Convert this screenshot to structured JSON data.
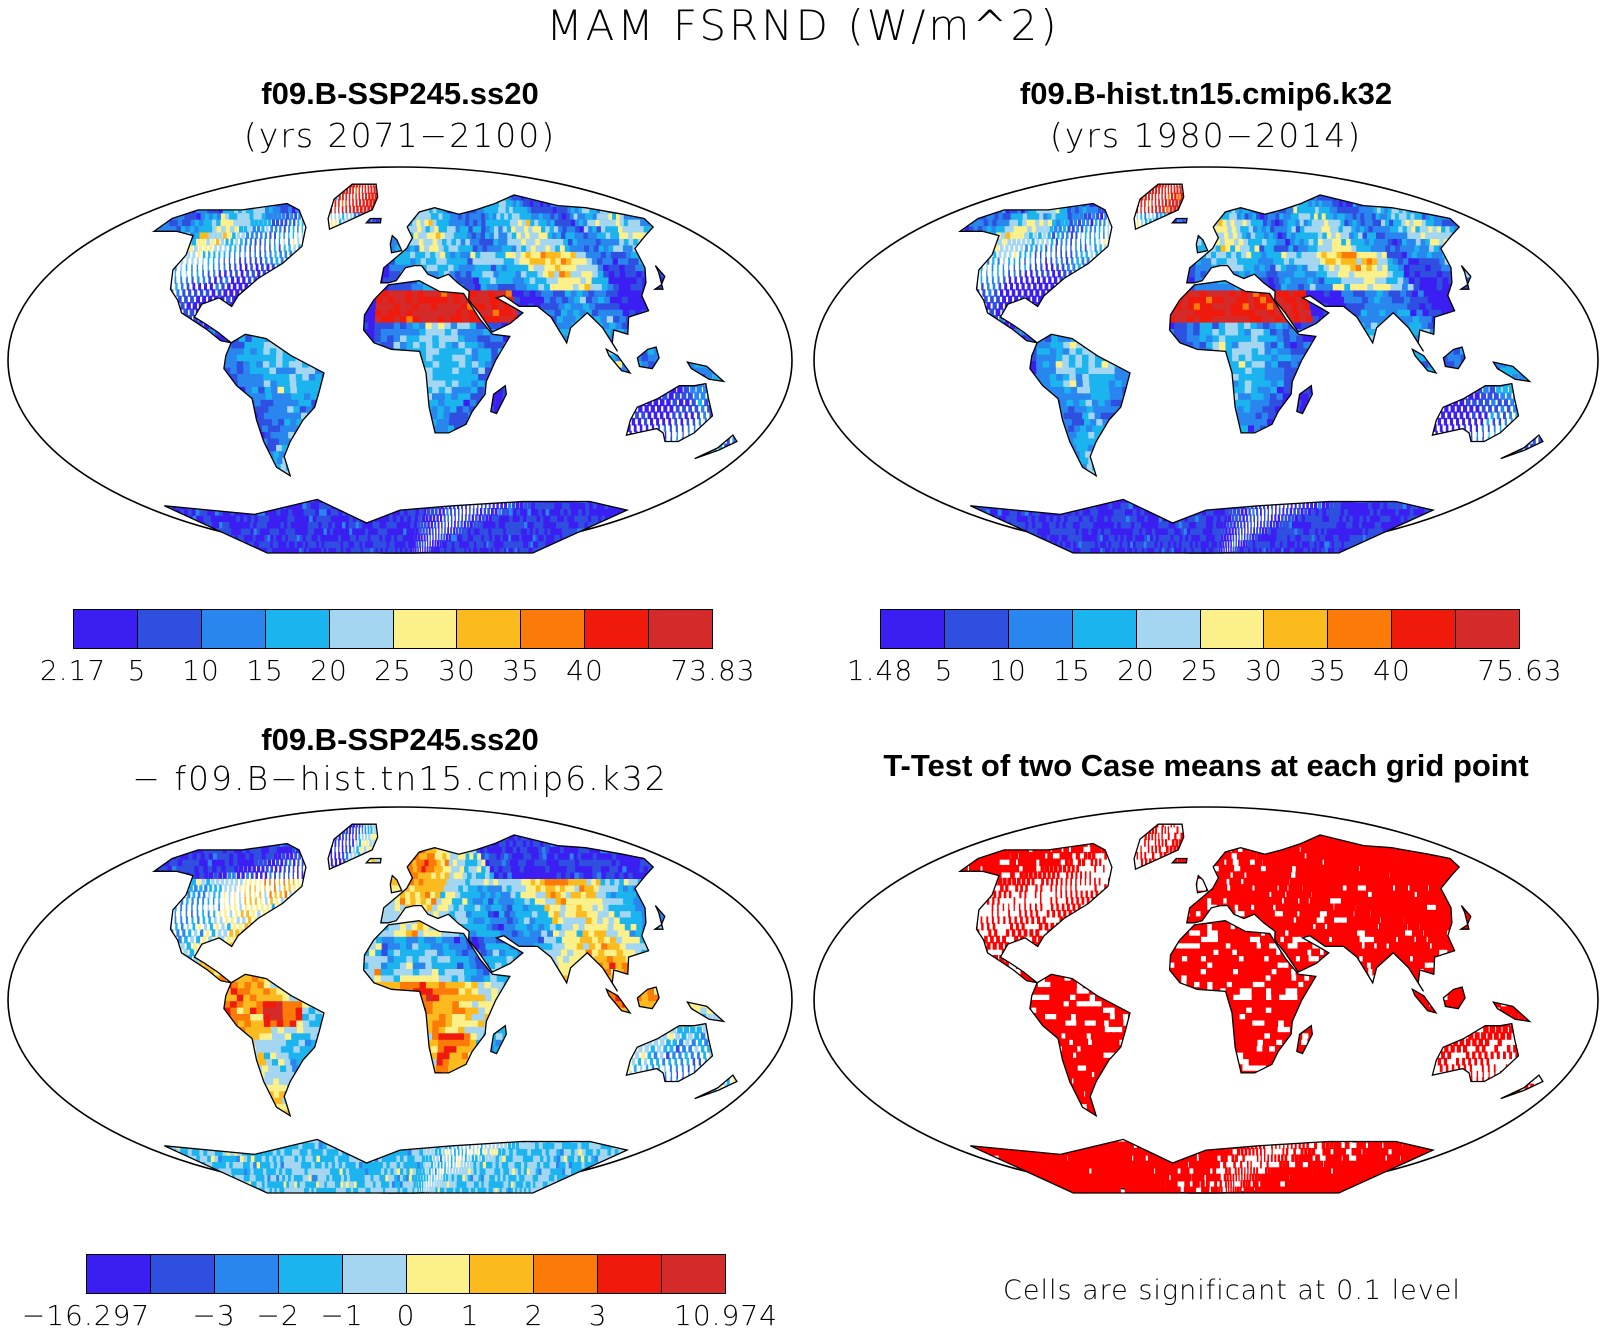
{
  "title": "MAM FSRND (W/m^2)",
  "colors": {
    "levels": [
      "#3b1ef2",
      "#2e4fe0",
      "#2a86ef",
      "#1cb4ee",
      "#a4d6f2",
      "#fbf08a",
      "#fbbb1e",
      "#fb7a08",
      "#f01a0c",
      "#d42a2a"
    ],
    "significant": "#ff0000",
    "ocean": "#ffffff",
    "coast": "#000000"
  },
  "panels": [
    {
      "id": "p1",
      "title": "f09.B-SSP245.ss20",
      "subtitle": "(yrs 2071−2100)",
      "colorbar_labels": [
        "2.17",
        "5",
        "10",
        "15",
        "20",
        "25",
        "30",
        "35",
        "40",
        "73.83"
      ],
      "colorbar_min": 2.17,
      "colorbar_max": 73.83,
      "colorbar_levels": [
        5,
        10,
        15,
        20,
        25,
        30,
        35,
        40
      ]
    },
    {
      "id": "p2",
      "title": "f09.B-hist.tn15.cmip6.k32",
      "subtitle": "(yrs 1980−2014)",
      "colorbar_labels": [
        "1.48",
        "5",
        "10",
        "15",
        "20",
        "25",
        "30",
        "35",
        "40",
        "75.63"
      ],
      "colorbar_min": 1.48,
      "colorbar_max": 75.63,
      "colorbar_levels": [
        5,
        10,
        15,
        20,
        25,
        30,
        35,
        40
      ]
    },
    {
      "id": "p3",
      "title": "f09.B-SSP245.ss20",
      "subtitle": "− f09.B−hist.tn15.cmip6.k32",
      "colorbar_labels": [
        "−16.297",
        "−3",
        "−2",
        "−1",
        "0",
        "1",
        "2",
        "3",
        "10.974"
      ],
      "colorbar_min": -16.297,
      "colorbar_max": 10.974,
      "colorbar_levels": [
        -3,
        -2,
        -1,
        0,
        1,
        2,
        3
      ]
    },
    {
      "id": "p4",
      "title": "T-Test of two Case means at each grid point",
      "note": "Cells are significant at 0.1 level"
    }
  ]
}
